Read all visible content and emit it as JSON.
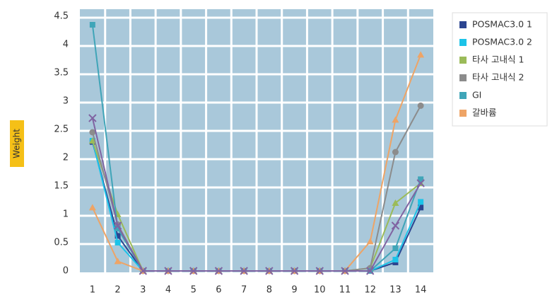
{
  "chart_data": {
    "type": "line",
    "y_label": "Weight",
    "categories": [
      1,
      2,
      3,
      4,
      5,
      6,
      7,
      8,
      9,
      10,
      11,
      12,
      13,
      14
    ],
    "ylim": [
      0,
      4.5
    ],
    "yticks": [
      0,
      0.5,
      1,
      1.5,
      2,
      2.5,
      3,
      3.5,
      4,
      4.5
    ],
    "grid": true,
    "series": [
      {
        "name": "POSMAC3.0 1",
        "color": "#2b4590",
        "marker": "square",
        "values": [
          2.28,
          0.62,
          0,
          0,
          0,
          0,
          0,
          0,
          0,
          0,
          0,
          0,
          0.15,
          1.12
        ]
      },
      {
        "name": "POSMAC3.0 2",
        "color": "#1cc3e8",
        "marker": "square",
        "values": [
          2.3,
          0.5,
          0,
          0,
          0,
          0,
          0,
          0,
          0,
          0,
          0,
          0,
          0.2,
          1.22
        ]
      },
      {
        "name": "타사 고내식 1",
        "color": "#9bbb59",
        "marker": "triangle",
        "values": [
          2.3,
          1.0,
          0,
          0,
          0,
          0,
          0,
          0,
          0,
          0,
          0,
          0.05,
          1.2,
          1.55
        ]
      },
      {
        "name": "타사 고내식 2",
        "color": "#8c8c8c",
        "marker": "circle",
        "values": [
          2.45,
          0.82,
          0,
          0,
          0,
          0,
          0,
          0,
          0,
          0,
          0,
          0.05,
          2.1,
          2.92
        ]
      },
      {
        "name": "GI",
        "color": "#40a5b8",
        "marker": "square",
        "values": [
          4.35,
          0.75,
          0,
          0,
          0,
          0,
          0,
          0,
          0,
          0,
          0,
          0,
          0.4,
          1.62
        ]
      },
      {
        "name": "갈바륨",
        "color": "#eea466",
        "marker": "triangle",
        "values": [
          1.12,
          0.17,
          0,
          0,
          0,
          0,
          0,
          0,
          0,
          0,
          0,
          0.52,
          2.67,
          3.82
        ]
      },
      {
        "color": "#8064a2",
        "marker": "cross",
        "values": [
          2.7,
          0.8,
          0,
          0,
          0,
          0,
          0,
          0,
          0,
          0,
          0,
          0,
          0.8,
          1.55
        ]
      }
    ]
  }
}
